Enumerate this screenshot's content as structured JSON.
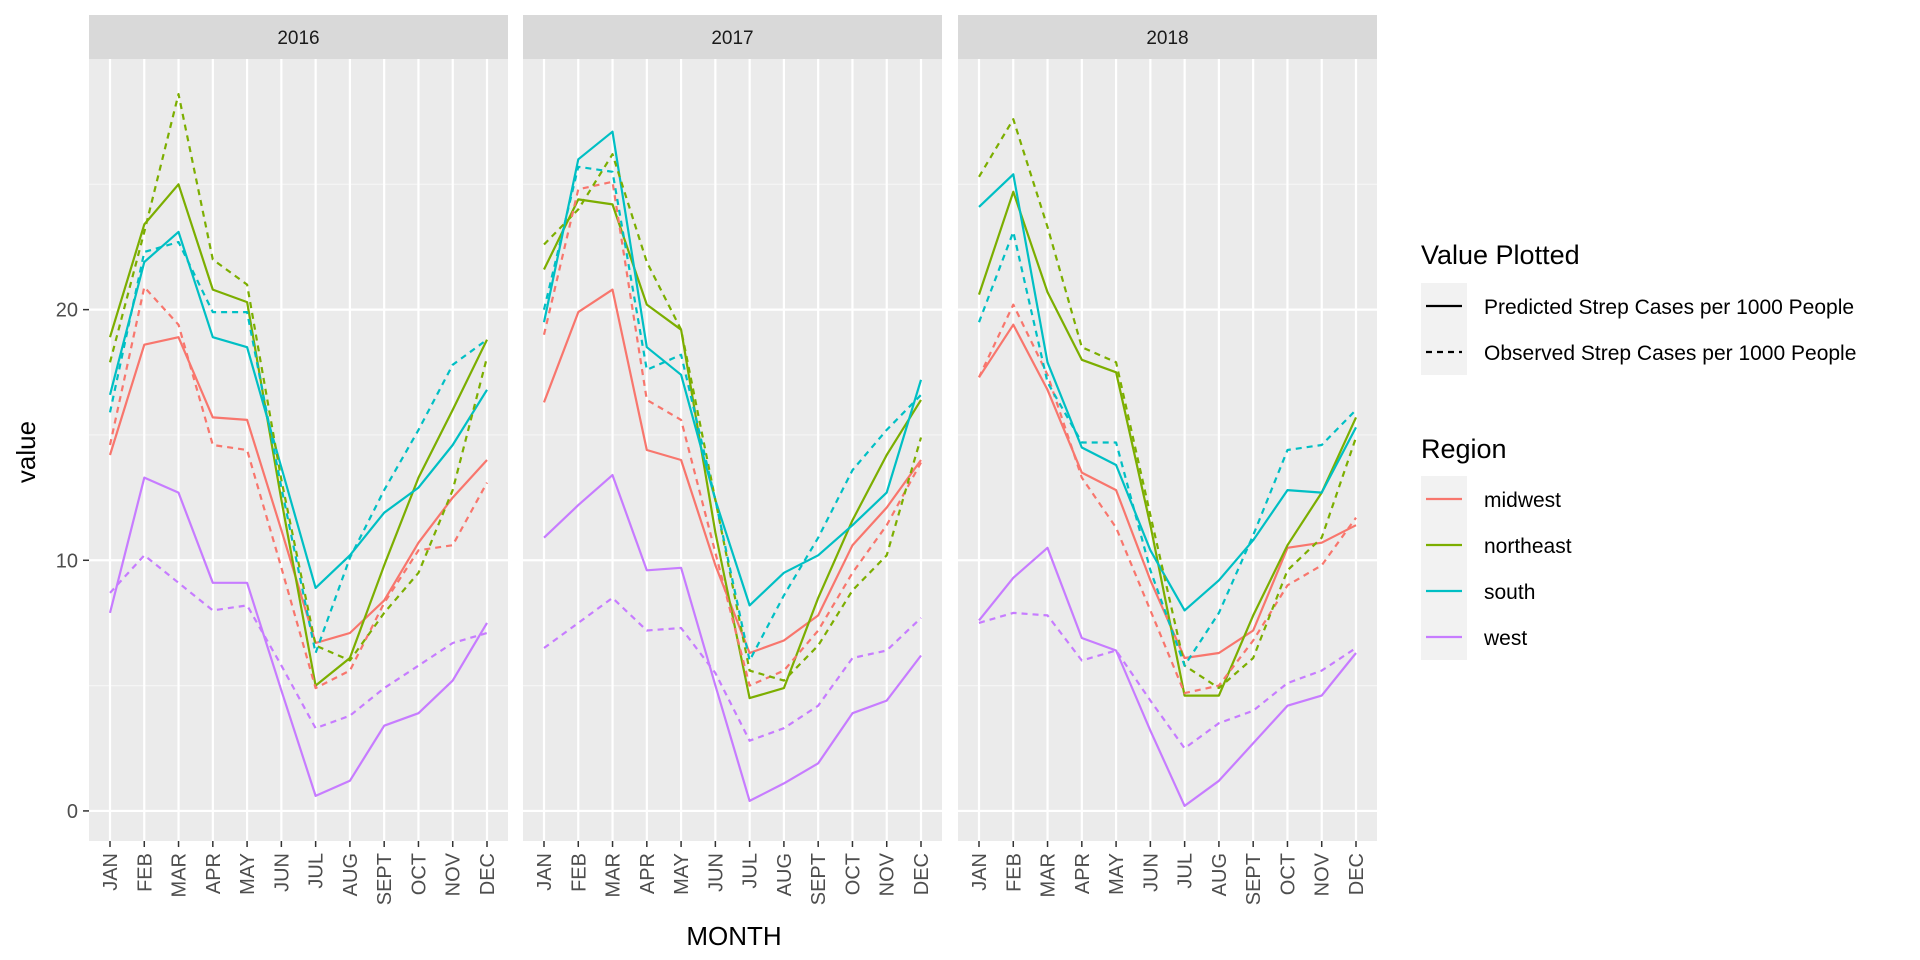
{
  "chart_data": {
    "type": "line",
    "xlabel": "MONTH",
    "ylabel": "value",
    "ylim": [
      -1.2,
      30.0
    ],
    "y_ticks": [
      0,
      10,
      20
    ],
    "y_tick_labels": [
      "0",
      "10",
      "20"
    ],
    "categories": [
      "JAN",
      "FEB",
      "MAR",
      "APR",
      "MAY",
      "JUN",
      "JUL",
      "AUG",
      "SEPT",
      "OCT",
      "NOV",
      "DEC"
    ],
    "grid": true,
    "legend_placement": "right",
    "legends": [
      {
        "title": "Value Plotted",
        "entries": [
          {
            "label": "Predicted Strep Cases per 1000 People",
            "linetype": "solid"
          },
          {
            "label": "Observed Strep Cases per 1000 People",
            "linetype": "dashed"
          }
        ]
      },
      {
        "title": "Region",
        "entries": [
          {
            "label": "midwest",
            "color": "#F8766D"
          },
          {
            "label": "northeast",
            "color": "#7CAE00"
          },
          {
            "label": "south",
            "color": "#00BFC4"
          },
          {
            "label": "west",
            "color": "#C77CFF"
          }
        ]
      }
    ],
    "facets": [
      {
        "label": "2016",
        "series": [
          {
            "region": "midwest",
            "type": "predicted",
            "values": [
              14.2,
              18.6,
              18.9,
              15.7,
              15.6,
              11.2,
              6.7,
              7.1,
              8.4,
              10.7,
              12.5,
              14.0
            ]
          },
          {
            "region": "northeast",
            "type": "predicted",
            "values": [
              18.9,
              23.4,
              25.0,
              20.8,
              20.3,
              12.4,
              5.0,
              6.1,
              9.8,
              13.3,
              16.0,
              18.8
            ]
          },
          {
            "region": "south",
            "type": "predicted",
            "values": [
              16.6,
              21.9,
              23.1,
              18.9,
              18.5,
              13.7,
              8.9,
              10.2,
              11.9,
              12.9,
              14.6,
              16.8
            ]
          },
          {
            "region": "west",
            "type": "predicted",
            "values": [
              7.9,
              13.3,
              12.7,
              9.1,
              9.1,
              4.8,
              0.6,
              1.2,
              3.4,
              3.9,
              5.2,
              7.5
            ]
          },
          {
            "region": "midwest",
            "type": "observed",
            "values": [
              14.6,
              20.9,
              19.4,
              14.6,
              14.4,
              9.7,
              4.9,
              5.6,
              8.3,
              10.4,
              10.6,
              13.1
            ]
          },
          {
            "region": "northeast",
            "type": "observed",
            "values": [
              17.9,
              23.1,
              28.6,
              22.0,
              21.0,
              13.2,
              6.6,
              6.0,
              7.9,
              9.5,
              12.8,
              18.1
            ]
          },
          {
            "region": "south",
            "type": "observed",
            "values": [
              15.9,
              22.3,
              22.7,
              19.9,
              19.9,
              12.9,
              6.3,
              10.1,
              12.8,
              15.2,
              17.8,
              18.8
            ]
          },
          {
            "region": "west",
            "type": "observed",
            "values": [
              8.7,
              10.2,
              9.1,
              8.0,
              8.2,
              5.8,
              3.3,
              3.8,
              4.9,
              5.8,
              6.7,
              7.1
            ]
          }
        ]
      },
      {
        "label": "2017",
        "series": [
          {
            "region": "midwest",
            "type": "predicted",
            "values": [
              16.3,
              19.9,
              20.8,
              14.4,
              14.0,
              9.8,
              6.3,
              6.8,
              7.8,
              10.6,
              12.1,
              14.0
            ]
          },
          {
            "region": "northeast",
            "type": "predicted",
            "values": [
              21.6,
              24.4,
              24.2,
              20.2,
              19.2,
              11.1,
              4.5,
              4.9,
              8.5,
              11.6,
              14.2,
              16.4
            ]
          },
          {
            "region": "south",
            "type": "predicted",
            "values": [
              19.5,
              26.0,
              27.1,
              18.5,
              17.4,
              12.4,
              8.2,
              9.5,
              10.2,
              11.4,
              12.7,
              17.2
            ]
          },
          {
            "region": "west",
            "type": "predicted",
            "values": [
              10.9,
              12.2,
              13.4,
              9.6,
              9.7,
              5.0,
              0.4,
              1.1,
              1.9,
              3.9,
              4.4,
              6.2
            ]
          },
          {
            "region": "midwest",
            "type": "observed",
            "values": [
              19.0,
              24.8,
              25.1,
              16.4,
              15.6,
              10.3,
              5.0,
              5.6,
              7.2,
              9.5,
              11.4,
              13.9
            ]
          },
          {
            "region": "northeast",
            "type": "observed",
            "values": [
              22.6,
              24.0,
              26.2,
              21.9,
              19.2,
              12.4,
              5.6,
              5.2,
              6.6,
              8.8,
              10.2,
              14.9
            ]
          },
          {
            "region": "south",
            "type": "observed",
            "values": [
              20.0,
              25.7,
              25.5,
              17.6,
              18.2,
              12.4,
              6.0,
              8.6,
              10.9,
              13.6,
              15.2,
              16.6
            ]
          },
          {
            "region": "west",
            "type": "observed",
            "values": [
              6.5,
              7.5,
              8.5,
              7.2,
              7.3,
              5.5,
              2.8,
              3.3,
              4.2,
              6.1,
              6.4,
              7.7
            ]
          }
        ]
      },
      {
        "label": "2018",
        "series": [
          {
            "region": "midwest",
            "type": "predicted",
            "values": [
              17.3,
              19.4,
              16.8,
              13.5,
              12.8,
              9.2,
              6.1,
              6.3,
              7.2,
              10.5,
              10.7,
              11.4
            ]
          },
          {
            "region": "northeast",
            "type": "predicted",
            "values": [
              20.6,
              24.7,
              20.7,
              18.0,
              17.5,
              11.4,
              4.6,
              4.6,
              7.8,
              10.6,
              12.7,
              15.7
            ]
          },
          {
            "region": "south",
            "type": "predicted",
            "values": [
              24.1,
              25.4,
              17.9,
              14.5,
              13.8,
              10.4,
              8.0,
              9.2,
              10.8,
              12.8,
              12.7,
              15.3
            ]
          },
          {
            "region": "west",
            "type": "predicted",
            "values": [
              7.6,
              9.3,
              10.5,
              6.9,
              6.4,
              3.2,
              0.2,
              1.2,
              2.7,
              4.2,
              4.6,
              6.3
            ]
          },
          {
            "region": "midwest",
            "type": "observed",
            "values": [
              17.3,
              20.2,
              17.4,
              13.3,
              11.3,
              8.0,
              4.7,
              5.0,
              6.8,
              9.0,
              9.8,
              11.7
            ]
          },
          {
            "region": "northeast",
            "type": "observed",
            "values": [
              25.3,
              27.6,
              23.3,
              18.5,
              17.9,
              11.8,
              5.8,
              4.9,
              6.1,
              9.6,
              10.9,
              14.9
            ]
          },
          {
            "region": "south",
            "type": "observed",
            "values": [
              19.5,
              23.1,
              17.1,
              14.7,
              14.7,
              9.6,
              5.8,
              7.9,
              11.0,
              14.4,
              14.6,
              16.0
            ]
          },
          {
            "region": "west",
            "type": "observed",
            "values": [
              7.5,
              7.9,
              7.8,
              6.0,
              6.4,
              4.4,
              2.5,
              3.5,
              4.0,
              5.1,
              5.6,
              6.5
            ]
          }
        ]
      }
    ]
  }
}
